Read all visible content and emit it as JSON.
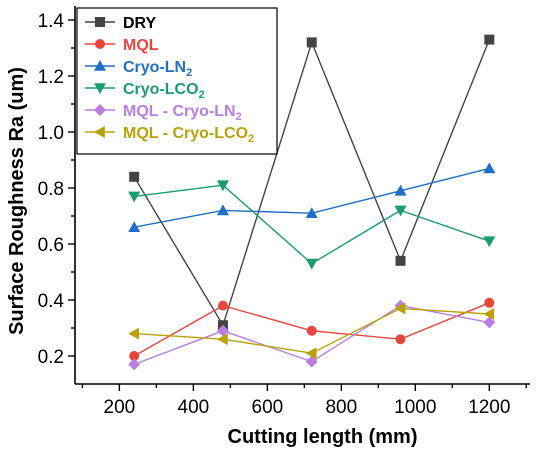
{
  "chart_data": {
    "type": "line",
    "xlabel": "Cutting length (mm)",
    "ylabel": "Surface Roughness Ra (um)",
    "xlim": [
      80,
      1310
    ],
    "ylim": [
      0.1,
      1.45
    ],
    "xticks": [
      200,
      400,
      600,
      800,
      1000,
      1200
    ],
    "yticks": [
      0.2,
      0.4,
      0.6,
      0.8,
      1.0,
      1.2,
      1.4
    ],
    "grid": false,
    "legend_position": "top-left",
    "x": [
      240,
      480,
      720,
      960,
      1200
    ],
    "series": [
      {
        "name": "DRY",
        "name_parts": [
          "DRY"
        ],
        "color": "#444444",
        "text_color": "#000000",
        "marker": "square",
        "values": [
          0.84,
          0.31,
          1.32,
          0.54,
          1.33
        ]
      },
      {
        "name": "MQL",
        "name_parts": [
          "MQL"
        ],
        "color": "#e8453c",
        "text_color": "#e8453c",
        "marker": "circle",
        "values": [
          0.2,
          0.38,
          0.29,
          0.26,
          0.39
        ]
      },
      {
        "name": "Cryo-LN2",
        "name_parts": [
          "Cryo-LN",
          "2"
        ],
        "color": "#1f6fc5",
        "text_color": "#1f6fc5",
        "marker": "triangle-up",
        "values": [
          0.66,
          0.72,
          0.71,
          0.79,
          0.87
        ]
      },
      {
        "name": "Cryo-LCO2",
        "name_parts": [
          "Cryo-LCO",
          "2"
        ],
        "color": "#1a9d6e",
        "text_color": "#1a9d6e",
        "marker": "triangle-down",
        "values": [
          0.77,
          0.81,
          0.53,
          0.72,
          0.61
        ]
      },
      {
        "name": "MQL - Cryo-LN2",
        "name_parts": [
          "MQL - Cryo-LN",
          "2"
        ],
        "color": "#b87fe0",
        "text_color": "#b87fe0",
        "marker": "diamond",
        "values": [
          0.17,
          0.29,
          0.18,
          0.38,
          0.32
        ]
      },
      {
        "name": "MQL - Cryo-LCO2",
        "name_parts": [
          "MQL - Cryo-LCO",
          "2"
        ],
        "color": "#b9a10a",
        "text_color": "#b9a10a",
        "marker": "triangle-left",
        "values": [
          0.28,
          0.26,
          0.21,
          0.37,
          0.35
        ]
      }
    ]
  }
}
